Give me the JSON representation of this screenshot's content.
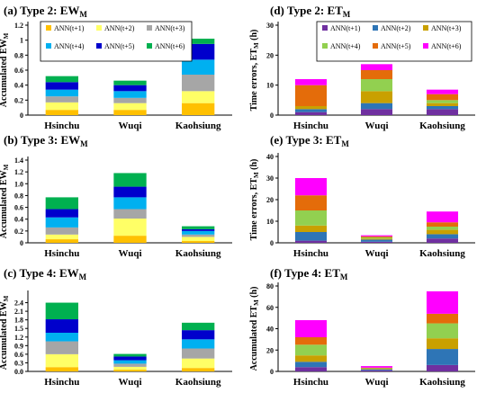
{
  "legend": {
    "entries": [
      "ANN(t+1)",
      "ANN(t+2)",
      "ANN(t+3)",
      "ANN(t+4)",
      "ANN(t+5)",
      "ANN(t+6)"
    ]
  },
  "chart_data": [
    {
      "id": "a",
      "type": "bar",
      "stacked": true,
      "title": "(a) Type 2: EW",
      "title_sub": "M",
      "ylabel": "Accumulated EW",
      "ylabel_sub": "M",
      "ylim": [
        0,
        1.2
      ],
      "yticks": [
        "0",
        "0.2",
        "0.4",
        "0.6",
        "0.8",
        "1",
        "1.2"
      ],
      "yticks_values": [
        0,
        0.2,
        0.4,
        0.6,
        0.8,
        1.0,
        1.2
      ],
      "categories": [
        "Hsinchu",
        "Wuqi",
        "Kaohsiung"
      ],
      "legend": true,
      "legend_placement": "top-right",
      "colors": [
        "#ffc000",
        "#ffff66",
        "#a6a6a6",
        "#00b0f0",
        "#0000cc",
        "#00b050"
      ],
      "series": [
        {
          "name": "ANN(t+1)",
          "values": [
            0.07,
            0.07,
            0.16
          ]
        },
        {
          "name": "ANN(t+2)",
          "values": [
            0.1,
            0.09,
            0.16
          ]
        },
        {
          "name": "ANN(t+3)",
          "values": [
            0.08,
            0.07,
            0.22
          ]
        },
        {
          "name": "ANN(t+4)",
          "values": [
            0.09,
            0.09,
            0.2
          ]
        },
        {
          "name": "ANN(t+5)",
          "values": [
            0.1,
            0.08,
            0.21
          ]
        },
        {
          "name": "ANN(t+6)",
          "values": [
            0.08,
            0.06,
            0.07
          ]
        }
      ]
    },
    {
      "id": "b",
      "type": "bar",
      "stacked": true,
      "title": "(b) Type 3: EW",
      "title_sub": "M",
      "ylabel": "Accumulated EW",
      "ylabel_sub": "M",
      "ylim": [
        0,
        1.4
      ],
      "yticks": [
        "0",
        "0.2",
        "0.4",
        "0.6",
        "0.8",
        "1.0",
        "1.2",
        "1.4"
      ],
      "yticks_values": [
        0,
        0.2,
        0.4,
        0.6,
        0.8,
        1.0,
        1.2,
        1.4
      ],
      "categories": [
        "Hsinchu",
        "Wuqi",
        "Kaohsiung"
      ],
      "legend": false,
      "colors": [
        "#ffc000",
        "#ffff66",
        "#a6a6a6",
        "#00b0f0",
        "#0000cc",
        "#00b050"
      ],
      "series": [
        {
          "name": "ANN(t+1)",
          "values": [
            0.06,
            0.12,
            0.03
          ]
        },
        {
          "name": "ANN(t+2)",
          "values": [
            0.08,
            0.29,
            0.07
          ]
        },
        {
          "name": "ANN(t+3)",
          "values": [
            0.12,
            0.16,
            0.04
          ]
        },
        {
          "name": "ANN(t+4)",
          "values": [
            0.17,
            0.2,
            0.06
          ]
        },
        {
          "name": "ANN(t+5)",
          "values": [
            0.14,
            0.18,
            0.03
          ]
        },
        {
          "name": "ANN(t+6)",
          "values": [
            0.2,
            0.23,
            0.05
          ]
        }
      ]
    },
    {
      "id": "c",
      "type": "bar",
      "stacked": true,
      "title": "(c) Type 4: EW",
      "title_sub": "M",
      "ylabel": "Accumulated EW",
      "ylabel_sub": "M",
      "ylim": [
        0,
        2.7
      ],
      "yticks": [
        "0.0",
        "0.3",
        "0.6",
        "0.9",
        "1.2",
        "1.5",
        "1.8",
        "2.1",
        "2.4"
      ],
      "yticks_values": [
        0,
        0.3,
        0.6,
        0.9,
        1.2,
        1.5,
        1.8,
        2.1,
        2.4
      ],
      "categories": [
        "Hsinchu",
        "Wuqi",
        "Kaohsiung"
      ],
      "legend": false,
      "colors": [
        "#ffc000",
        "#ffff66",
        "#a6a6a6",
        "#00b0f0",
        "#0000cc",
        "#00b050"
      ],
      "series": [
        {
          "name": "ANN(t+1)",
          "values": [
            0.15,
            0.06,
            0.12
          ]
        },
        {
          "name": "ANN(t+2)",
          "values": [
            0.45,
            0.1,
            0.33
          ]
        },
        {
          "name": "ANN(t+3)",
          "values": [
            0.45,
            0.11,
            0.35
          ]
        },
        {
          "name": "ANN(t+4)",
          "values": [
            0.3,
            0.12,
            0.32
          ]
        },
        {
          "name": "ANN(t+5)",
          "values": [
            0.47,
            0.13,
            0.32
          ]
        },
        {
          "name": "ANN(t+6)",
          "values": [
            0.58,
            0.09,
            0.26
          ]
        }
      ]
    },
    {
      "id": "d",
      "type": "bar",
      "stacked": true,
      "title": "(d) Type 2: ET",
      "title_sub": "M",
      "ylabel": "Time errors, ET",
      "ylabel_sub": "M",
      "ylabel_suffix": " (h)",
      "ylim": [
        0,
        30
      ],
      "yticks": [
        "0",
        "10",
        "20",
        "30"
      ],
      "yticks_values": [
        0,
        10,
        20,
        30
      ],
      "categories": [
        "Hsinchu",
        "Wuqi",
        "Kaohsiung"
      ],
      "legend": true,
      "legend_placement": "top-right",
      "colors": [
        "#7030a0",
        "#2e75b6",
        "#c9a000",
        "#92d050",
        "#e46c0a",
        "#ff00ff"
      ],
      "series": [
        {
          "name": "ANN(t+1)",
          "values": [
            1,
            2,
            2
          ]
        },
        {
          "name": "ANN(t+2)",
          "values": [
            1,
            2,
            1
          ]
        },
        {
          "name": "ANN(t+3)",
          "values": [
            1,
            4,
            1
          ]
        },
        {
          "name": "ANN(t+4)",
          "values": [
            0,
            4,
            1
          ]
        },
        {
          "name": "ANN(t+5)",
          "values": [
            7,
            3,
            2
          ]
        },
        {
          "name": "ANN(t+6)",
          "values": [
            2,
            2,
            1.5
          ]
        }
      ]
    },
    {
      "id": "e",
      "type": "bar",
      "stacked": true,
      "title": "(e) Type 3: ET",
      "title_sub": "M",
      "ylabel": "Time errors, ET",
      "ylabel_sub": "M",
      "ylabel_suffix": " (h)",
      "ylim": [
        0,
        40
      ],
      "yticks": [
        "0",
        "10",
        "20",
        "30",
        "40"
      ],
      "yticks_values": [
        0,
        10,
        20,
        30,
        40
      ],
      "categories": [
        "Hsinchu",
        "Wuqi",
        "Kaohsiung"
      ],
      "legend": false,
      "colors": [
        "#7030a0",
        "#2e75b6",
        "#c9a000",
        "#92d050",
        "#e46c0a",
        "#ff00ff"
      ],
      "series": [
        {
          "name": "ANN(t+1)",
          "values": [
            1,
            0.5,
            2
          ]
        },
        {
          "name": "ANN(t+2)",
          "values": [
            4,
            1,
            2
          ]
        },
        {
          "name": "ANN(t+3)",
          "values": [
            3,
            0.5,
            2
          ]
        },
        {
          "name": "ANN(t+4)",
          "values": [
            7,
            0.5,
            1.5
          ]
        },
        {
          "name": "ANN(t+5)",
          "values": [
            7,
            0.5,
            2
          ]
        },
        {
          "name": "ANN(t+6)",
          "values": [
            8,
            0.5,
            5
          ]
        }
      ]
    },
    {
      "id": "f",
      "type": "bar",
      "stacked": true,
      "title": "(f) Type 4: ET",
      "title_sub": "M",
      "ylabel": "Accumulated ET",
      "ylabel_sub": "M",
      "ylabel_suffix": " (h)",
      "ylim": [
        0,
        80
      ],
      "yticks": [
        "0",
        "20",
        "40",
        "60",
        "80"
      ],
      "yticks_values": [
        0,
        20,
        40,
        60,
        80
      ],
      "categories": [
        "Hsinchu",
        "Wuqi",
        "Kaohsiung"
      ],
      "legend": false,
      "colors": [
        "#7030a0",
        "#2e75b6",
        "#c9a000",
        "#92d050",
        "#e46c0a",
        "#ff00ff"
      ],
      "series": [
        {
          "name": "ANN(t+1)",
          "values": [
            4,
            1,
            6
          ]
        },
        {
          "name": "ANN(t+2)",
          "values": [
            5,
            1,
            15
          ]
        },
        {
          "name": "ANN(t+3)",
          "values": [
            6,
            0.5,
            10
          ]
        },
        {
          "name": "ANN(t+4)",
          "values": [
            10,
            0.5,
            14
          ]
        },
        {
          "name": "ANN(t+5)",
          "values": [
            7,
            0.5,
            9
          ]
        },
        {
          "name": "ANN(t+6)",
          "values": [
            16,
            1.5,
            21
          ]
        }
      ]
    }
  ]
}
